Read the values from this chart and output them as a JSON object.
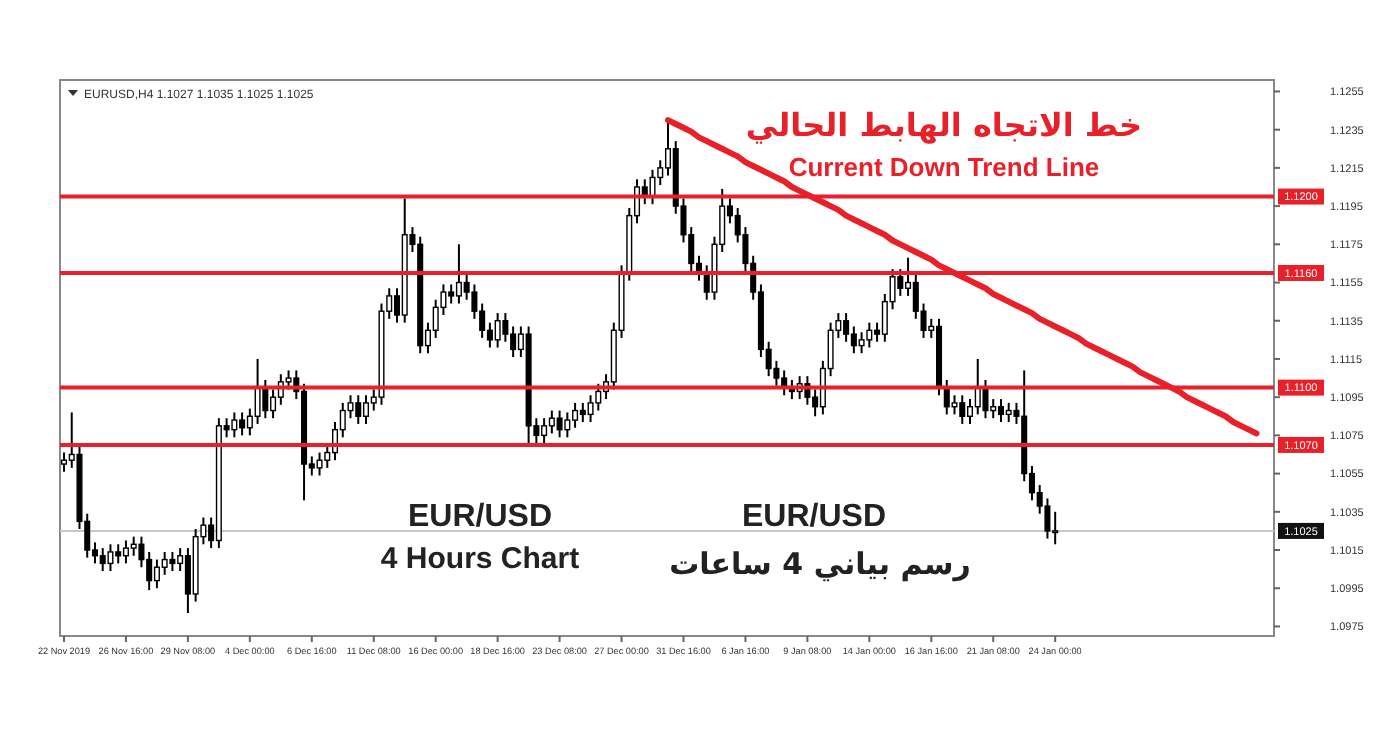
{
  "chart_data": {
    "type": "candlestick",
    "title": "EURUSD,H4  1.1027 1.1035 1.1025 1.1025",
    "categories": [
      "22 Nov 2019",
      null,
      null,
      null,
      null,
      null,
      null,
      null,
      "26 Nov 16:00",
      null,
      null,
      null,
      null,
      null,
      null,
      null,
      "29 Nov 08:00",
      null,
      null,
      null,
      null,
      null,
      null,
      null,
      "4 Dec 00:00",
      null,
      null,
      null,
      null,
      null,
      null,
      null,
      "6 Dec 16:00",
      null,
      null,
      null,
      null,
      null,
      null,
      null,
      "11 Dec 08:00",
      null,
      null,
      null,
      null,
      null,
      null,
      null,
      "16 Dec 00:00",
      null,
      null,
      null,
      null,
      null,
      null,
      null,
      "18 Dec 16:00",
      null,
      null,
      null,
      null,
      null,
      null,
      null,
      "23 Dec 08:00",
      null,
      null,
      null,
      null,
      null,
      null,
      null,
      "27 Dec 00:00",
      null,
      null,
      null,
      null,
      null,
      null,
      null,
      "31 Dec 16:00",
      null,
      null,
      null,
      null,
      null,
      null,
      null,
      "6 Jan 16:00",
      null,
      null,
      null,
      null,
      null,
      null,
      null,
      "9 Jan 08:00",
      null,
      null,
      null,
      null,
      null,
      null,
      null,
      "14 Jan 00:00",
      null,
      null,
      null,
      null,
      null,
      null,
      null,
      "16 Jan 16:00",
      null,
      null,
      null,
      null,
      null,
      null,
      null,
      "21 Jan 08:00",
      null,
      null,
      null,
      null,
      null,
      null,
      null,
      "24 Jan 00:00",
      null,
      null,
      null,
      null,
      null,
      null,
      null,
      null,
      null,
      null,
      null,
      null,
      null,
      null,
      null,
      null,
      null,
      null,
      null,
      null,
      null,
      null,
      null,
      null,
      null,
      null,
      null,
      null
    ],
    "series": [
      {
        "color": "#000000",
        "ohlc": [
          [
            1.106,
            1.1066,
            1.1056,
            1.1062
          ],
          [
            1.1062,
            1.1087,
            1.1058,
            1.1065
          ],
          [
            1.1065,
            1.1069,
            1.1026,
            1.103
          ],
          [
            1.103,
            1.1034,
            1.1011,
            1.1015
          ],
          [
            1.1015,
            1.1019,
            1.1008,
            1.1012
          ],
          [
            1.1012,
            1.1016,
            1.1004,
            1.1008
          ],
          [
            1.1008,
            1.1018,
            1.1004,
            1.1014
          ],
          [
            1.1014,
            1.1018,
            1.1008,
            1.1012
          ],
          [
            1.1012,
            1.102,
            1.1008,
            1.1016
          ],
          [
            1.1016,
            1.1022,
            1.1012,
            1.1018
          ],
          [
            1.1018,
            1.1022,
            1.1006,
            1.101
          ],
          [
            1.101,
            1.1014,
            1.0994,
            1.0999
          ],
          [
            1.0999,
            1.101,
            1.0995,
            1.1006
          ],
          [
            1.1006,
            1.1014,
            1.1002,
            1.101
          ],
          [
            1.101,
            1.1014,
            1.1004,
            1.1008
          ],
          [
            1.1008,
            1.1016,
            1.1004,
            1.1012
          ],
          [
            1.1012,
            1.1016,
            1.0982,
            1.0992
          ],
          [
            1.0992,
            1.1026,
            1.0988,
            1.1022
          ],
          [
            1.1022,
            1.1032,
            1.1018,
            1.1028
          ],
          [
            1.1028,
            1.1032,
            1.1016,
            1.102
          ],
          [
            1.102,
            1.1084,
            1.1016,
            1.108
          ],
          [
            1.108,
            1.1084,
            1.1074,
            1.1078
          ],
          [
            1.1078,
            1.1087,
            1.1074,
            1.1083
          ],
          [
            1.1083,
            1.1087,
            1.1075,
            1.1079
          ],
          [
            1.1079,
            1.1089,
            1.1075,
            1.1085
          ],
          [
            1.1085,
            1.1115,
            1.1081,
            1.11
          ],
          [
            1.11,
            1.1104,
            1.1084,
            1.1088
          ],
          [
            1.1088,
            1.1099,
            1.1084,
            1.1095
          ],
          [
            1.1095,
            1.1107,
            1.1091,
            1.1103
          ],
          [
            1.1103,
            1.1109,
            1.1099,
            1.1105
          ],
          [
            1.1105,
            1.1109,
            1.1094,
            1.1098
          ],
          [
            1.1098,
            1.1102,
            1.1041,
            1.106
          ],
          [
            1.106,
            1.1064,
            1.1054,
            1.1058
          ],
          [
            1.1058,
            1.1066,
            1.1054,
            1.1062
          ],
          [
            1.1062,
            1.107,
            1.1058,
            1.1066
          ],
          [
            1.1066,
            1.1082,
            1.1062,
            1.1078
          ],
          [
            1.1078,
            1.1092,
            1.1074,
            1.1088
          ],
          [
            1.1088,
            1.1096,
            1.1084,
            1.1092
          ],
          [
            1.1092,
            1.1096,
            1.1081,
            1.1085
          ],
          [
            1.1085,
            1.1096,
            1.1081,
            1.1092
          ],
          [
            1.1092,
            1.1099,
            1.1088,
            1.1095
          ],
          [
            1.1095,
            1.1144,
            1.1091,
            1.114
          ],
          [
            1.114,
            1.1152,
            1.1136,
            1.1148
          ],
          [
            1.1148,
            1.1152,
            1.1134,
            1.1138
          ],
          [
            1.1138,
            1.1199,
            1.1134,
            1.118
          ],
          [
            1.118,
            1.1184,
            1.1171,
            1.1175
          ],
          [
            1.1175,
            1.1179,
            1.1118,
            1.1122
          ],
          [
            1.1122,
            1.1134,
            1.1118,
            1.113
          ],
          [
            1.113,
            1.1146,
            1.1126,
            1.1142
          ],
          [
            1.1142,
            1.1154,
            1.1138,
            1.115
          ],
          [
            1.115,
            1.1154,
            1.1144,
            1.1148
          ],
          [
            1.1148,
            1.1175,
            1.1144,
            1.1155
          ],
          [
            1.1155,
            1.1159,
            1.1146,
            1.115
          ],
          [
            1.115,
            1.1154,
            1.1136,
            1.114
          ],
          [
            1.114,
            1.1144,
            1.1126,
            1.113
          ],
          [
            1.113,
            1.1134,
            1.1121,
            1.1125
          ],
          [
            1.1125,
            1.1139,
            1.1121,
            1.1135
          ],
          [
            1.1135,
            1.1139,
            1.1124,
            1.1128
          ],
          [
            1.1128,
            1.1132,
            1.1116,
            1.112
          ],
          [
            1.112,
            1.1132,
            1.1116,
            1.1128
          ],
          [
            1.1128,
            1.1132,
            1.1071,
            1.108
          ],
          [
            1.108,
            1.1084,
            1.1071,
            1.1075
          ],
          [
            1.1075,
            1.1084,
            1.1071,
            1.108
          ],
          [
            1.108,
            1.1088,
            1.1076,
            1.1084
          ],
          [
            1.1084,
            1.1088,
            1.1074,
            1.1078
          ],
          [
            1.1078,
            1.1087,
            1.1074,
            1.1083
          ],
          [
            1.1083,
            1.1092,
            1.1079,
            1.1088
          ],
          [
            1.1088,
            1.1092,
            1.1082,
            1.1086
          ],
          [
            1.1086,
            1.1096,
            1.1082,
            1.1092
          ],
          [
            1.1092,
            1.1102,
            1.1088,
            1.1098
          ],
          [
            1.1098,
            1.1107,
            1.1094,
            1.1103
          ],
          [
            1.1103,
            1.1134,
            1.1099,
            1.113
          ],
          [
            1.113,
            1.1164,
            1.1126,
            1.116
          ],
          [
            1.116,
            1.1194,
            1.1156,
            1.119
          ],
          [
            1.119,
            1.1209,
            1.1186,
            1.1205
          ],
          [
            1.1205,
            1.1209,
            1.1196,
            1.12
          ],
          [
            1.12,
            1.1214,
            1.1196,
            1.121
          ],
          [
            1.121,
            1.1219,
            1.1206,
            1.1215
          ],
          [
            1.1215,
            1.124,
            1.1211,
            1.1225
          ],
          [
            1.1225,
            1.1229,
            1.1191,
            1.1195
          ],
          [
            1.1195,
            1.1199,
            1.1176,
            1.118
          ],
          [
            1.118,
            1.1184,
            1.1161,
            1.1165
          ],
          [
            1.1165,
            1.1169,
            1.1156,
            1.116
          ],
          [
            1.116,
            1.1164,
            1.1146,
            1.115
          ],
          [
            1.115,
            1.1179,
            1.1146,
            1.1175
          ],
          [
            1.1175,
            1.1204,
            1.1171,
            1.1195
          ],
          [
            1.1195,
            1.1199,
            1.1186,
            1.119
          ],
          [
            1.119,
            1.1194,
            1.1176,
            1.118
          ],
          [
            1.118,
            1.1184,
            1.1161,
            1.1165
          ],
          [
            1.1165,
            1.1169,
            1.1146,
            1.115
          ],
          [
            1.115,
            1.1154,
            1.1116,
            1.112
          ],
          [
            1.112,
            1.1124,
            1.1106,
            1.111
          ],
          [
            1.111,
            1.1114,
            1.1101,
            1.1105
          ],
          [
            1.1105,
            1.1109,
            1.1096,
            1.11
          ],
          [
            1.11,
            1.1104,
            1.1094,
            1.1098
          ],
          [
            1.1098,
            1.1106,
            1.1094,
            1.1102
          ],
          [
            1.1102,
            1.1106,
            1.1091,
            1.1095
          ],
          [
            1.1095,
            1.1099,
            1.1085,
            1.109
          ],
          [
            1.109,
            1.1114,
            1.1086,
            1.111
          ],
          [
            1.111,
            1.1134,
            1.1106,
            1.113
          ],
          [
            1.113,
            1.1139,
            1.1126,
            1.1135
          ],
          [
            1.1135,
            1.1139,
            1.1124,
            1.1128
          ],
          [
            1.1128,
            1.1132,
            1.1118,
            1.1122
          ],
          [
            1.1122,
            1.1129,
            1.1118,
            1.1125
          ],
          [
            1.1125,
            1.1134,
            1.1121,
            1.113
          ],
          [
            1.113,
            1.1134,
            1.1124,
            1.1128
          ],
          [
            1.1128,
            1.1149,
            1.1124,
            1.1145
          ],
          [
            1.1145,
            1.1162,
            1.1141,
            1.1158
          ],
          [
            1.1158,
            1.1162,
            1.1148,
            1.1152
          ],
          [
            1.1152,
            1.1168,
            1.1148,
            1.1155
          ],
          [
            1.1155,
            1.1159,
            1.1136,
            1.114
          ],
          [
            1.114,
            1.1144,
            1.1126,
            1.113
          ],
          [
            1.113,
            1.1136,
            1.1126,
            1.1132
          ],
          [
            1.1132,
            1.1136,
            1.1096,
            1.11
          ],
          [
            1.11,
            1.1104,
            1.1086,
            1.109
          ],
          [
            1.109,
            1.1096,
            1.1086,
            1.1092
          ],
          [
            1.1092,
            1.1096,
            1.1081,
            1.1085
          ],
          [
            1.1085,
            1.1094,
            1.1081,
            1.109
          ],
          [
            1.109,
            1.1115,
            1.1086,
            1.11
          ],
          [
            1.11,
            1.1104,
            1.1084,
            1.1088
          ],
          [
            1.1088,
            1.1094,
            1.1084,
            1.109
          ],
          [
            1.109,
            1.1094,
            1.1082,
            1.1086
          ],
          [
            1.1086,
            1.1092,
            1.1082,
            1.1088
          ],
          [
            1.1088,
            1.1092,
            1.1081,
            1.1085
          ],
          [
            1.1085,
            1.1109,
            1.1051,
            1.1055
          ],
          [
            1.1055,
            1.1059,
            1.1041,
            1.1045
          ],
          [
            1.1045,
            1.1049,
            1.1034,
            1.1038
          ],
          [
            1.1038,
            1.1042,
            1.1021,
            1.1025
          ],
          [
            1.1025,
            1.1035,
            1.1018,
            1.1025
          ],
          null,
          null,
          null,
          null,
          null,
          null,
          null,
          null,
          null,
          null,
          null,
          null,
          null,
          null,
          null,
          null,
          null,
          null,
          null,
          null,
          null,
          null,
          null,
          null,
          null,
          null,
          null,
          null
        ]
      },
      {
        "type": "line",
        "color": "#e8202a",
        "values": [
          null,
          null,
          null,
          null,
          null,
          null,
          null,
          null,
          null,
          null,
          null,
          null,
          null,
          null,
          null,
          null,
          null,
          null,
          null,
          null,
          null,
          null,
          null,
          null,
          null,
          null,
          null,
          null,
          null,
          null,
          null,
          null,
          null,
          null,
          null,
          null,
          null,
          null,
          null,
          null,
          null,
          null,
          null,
          null,
          null,
          null,
          null,
          null,
          null,
          null,
          null,
          null,
          null,
          null,
          null,
          null,
          null,
          null,
          null,
          null,
          null,
          null,
          null,
          null,
          null,
          null,
          null,
          null,
          null,
          null,
          null,
          null,
          null,
          null,
          null,
          null,
          null,
          null,
          1.124,
          1.1238,
          1.1236,
          1.1234,
          1.1231,
          1.1229,
          1.1227,
          1.1225,
          1.1223,
          1.1221,
          1.1218,
          1.1216,
          1.1214,
          1.1212,
          1.121,
          1.1208,
          1.1205,
          1.1203,
          1.1201,
          1.1199,
          1.1197,
          1.1195,
          1.1193,
          1.119,
          1.1188,
          1.1186,
          1.1184,
          1.1182,
          1.118,
          1.1177,
          1.1175,
          1.1173,
          1.1171,
          1.1169,
          1.1167,
          1.1164,
          1.1162,
          1.116,
          1.1158,
          1.1156,
          1.1154,
          1.1152,
          1.1149,
          1.1147,
          1.1145,
          1.1143,
          1.1141,
          1.1139,
          1.1136,
          1.1134,
          1.1132,
          1.113,
          1.1128,
          1.1126,
          1.1123,
          1.1121,
          1.1119,
          1.1117,
          1.1115,
          1.1113,
          1.1111,
          1.1108,
          1.1106,
          1.1104,
          1.1102,
          1.11,
          1.1098,
          1.1095,
          1.1093,
          1.1091,
          1.1089,
          1.1087,
          1.1085,
          1.1082,
          1.108,
          1.1078,
          1.1076,
          null,
          null
        ]
      }
    ],
    "ylim": [
      1.097,
      1.1261
    ],
    "yticks": [
      1.0975,
      1.0995,
      1.1015,
      1.1035,
      1.1055,
      1.1075,
      1.1095,
      1.1115,
      1.1135,
      1.1155,
      1.1175,
      1.1195,
      1.1215,
      1.1235,
      1.1255
    ],
    "ref_lines": [
      {
        "axis": "y",
        "value": 1.12,
        "label": "1.1200",
        "color": "#e8202a"
      },
      {
        "axis": "y",
        "value": 1.116,
        "label": "1.1160",
        "color": "#e8202a"
      },
      {
        "axis": "y",
        "value": 1.11,
        "label": "1.1100",
        "color": "#e8202a"
      },
      {
        "axis": "y",
        "value": 1.107,
        "label": "1.1070",
        "color": "#e8202a"
      },
      {
        "axis": "y",
        "value": 1.1025,
        "label": "1.1025",
        "color": "#c8c8c8"
      }
    ],
    "annotations": [
      "خط الاتجاه الهابط الحالي",
      "Current Down Trend Line",
      "EUR/USD",
      "4 Hours Chart",
      "EUR/USD",
      "رسم بياني 4 ساعات"
    ],
    "grid": false
  }
}
